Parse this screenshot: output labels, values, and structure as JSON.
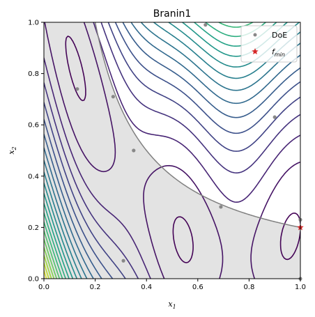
{
  "chart_data": {
    "type": "contour",
    "title": "Branin1",
    "xlabel": "x",
    "xlabel_sub": "1",
    "ylabel": "x",
    "ylabel_sub": "2",
    "xlim": [
      0,
      1
    ],
    "ylim": [
      0,
      1
    ],
    "xticks": [
      "0.0",
      "0.2",
      "0.4",
      "0.6",
      "0.8",
      "1.0"
    ],
    "yticks": [
      "0.0",
      "0.2",
      "0.4",
      "0.6",
      "0.8",
      "1.0"
    ],
    "grid": false,
    "legend_position": "top-right",
    "legend": [
      {
        "label": "DoE",
        "marker": "circle",
        "color": "#888888"
      },
      {
        "label": "f",
        "sub": "min",
        "marker": "star",
        "color": "#d62728"
      }
    ],
    "constraint_boundary_color": "#808080",
    "infeasible_region_color": "#e3e3e3",
    "colormap": "viridis",
    "doe_points": [
      {
        "x": 0.13,
        "y": 0.74
      },
      {
        "x": 0.27,
        "y": 0.71
      },
      {
        "x": 0.35,
        "y": 0.5
      },
      {
        "x": 0.31,
        "y": 0.07
      },
      {
        "x": 0.63,
        "y": 0.99
      },
      {
        "x": 0.69,
        "y": 0.28
      },
      {
        "x": 0.9,
        "y": 0.63
      },
      {
        "x": 1.0,
        "y": 0.23
      },
      {
        "x": 1.0,
        "y": 0.0
      }
    ],
    "f_min": {
      "x": 1.0,
      "y": 0.2
    }
  }
}
